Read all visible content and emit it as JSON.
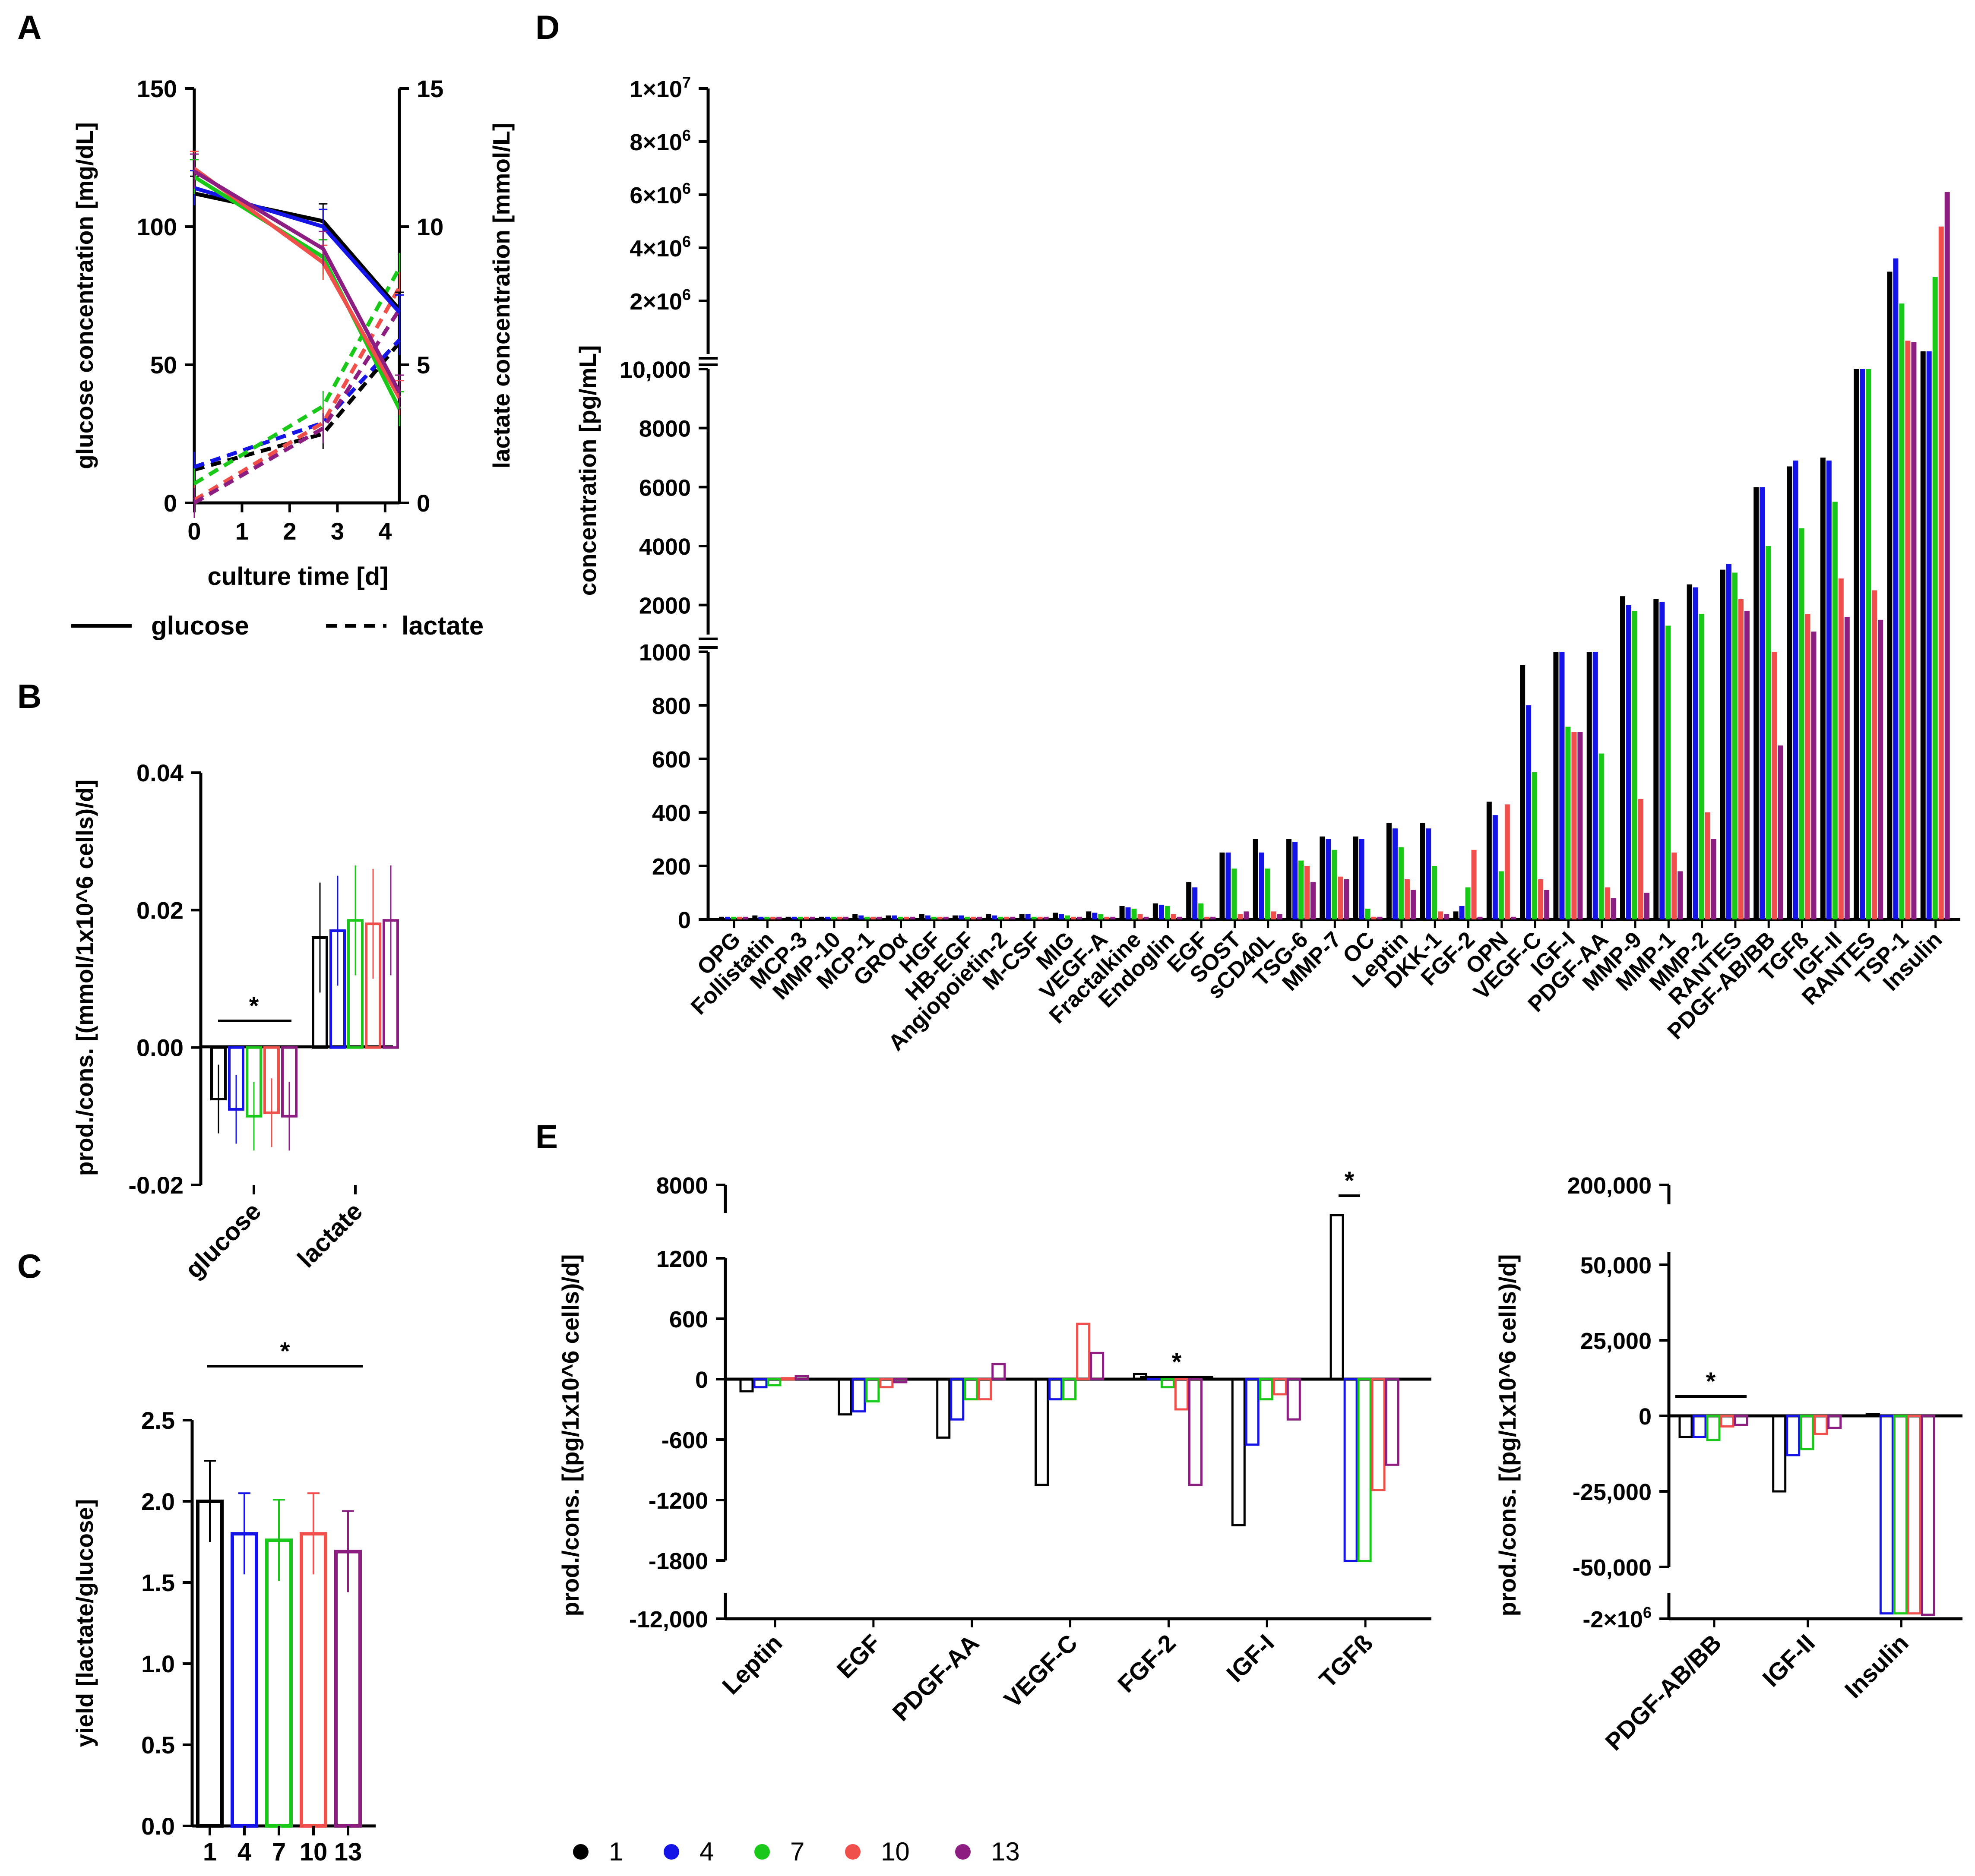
{
  "colors": {
    "g1": "#000000",
    "g4": "#1414e6",
    "g7": "#19c819",
    "g10": "#f0504b",
    "g13": "#8c1e82"
  },
  "legend": {
    "groups": [
      "1",
      "4",
      "7",
      "10",
      "13"
    ]
  },
  "panels": {
    "a": "A",
    "b": "B",
    "c": "C",
    "d": "D",
    "e": "E"
  },
  "chart_data": [
    {
      "id": "A",
      "type": "line",
      "xlabel": "culture time [d]",
      "ylabel": "glucose concentration [mg/dL]",
      "ylabel_right": "lactate concentration [mmol/L]",
      "x_ticks": [
        "0",
        "1",
        "2",
        "3",
        "4"
      ],
      "y_ticks": [
        "0",
        "50",
        "100",
        "150"
      ],
      "y_right_ticks": [
        "0",
        "5",
        "10",
        "15"
      ],
      "xlim": [
        0,
        4.3
      ],
      "ylim": [
        0,
        150
      ],
      "y_right_lim": [
        0,
        15
      ],
      "x": [
        0,
        2.7,
        4.3
      ],
      "legend": [
        {
          "label": "glucose",
          "style": "solid"
        },
        {
          "label": "lactate",
          "style": "dashed"
        }
      ],
      "glucose_series": [
        {
          "name": "1",
          "values": [
            112,
            102,
            70
          ]
        },
        {
          "name": "4",
          "values": [
            114,
            100,
            69
          ]
        },
        {
          "name": "7",
          "values": [
            118,
            89,
            34
          ]
        },
        {
          "name": "10",
          "values": [
            121,
            87,
            38
          ]
        },
        {
          "name": "13",
          "values": [
            120,
            92,
            40
          ]
        }
      ],
      "lactate_series": [
        {
          "name": "1",
          "values": [
            1.2,
            2.5,
            5.8
          ]
        },
        {
          "name": "4",
          "values": [
            1.3,
            2.9,
            5.9
          ]
        },
        {
          "name": "7",
          "values": [
            0.7,
            3.5,
            8.5
          ]
        },
        {
          "name": "10",
          "values": [
            0.1,
            2.9,
            7.8
          ]
        },
        {
          "name": "13",
          "values": [
            0.0,
            2.7,
            7.0
          ]
        }
      ]
    },
    {
      "id": "B",
      "type": "bar",
      "ylabel": "prod./cons. [(mmol/1x10^6 cells)/d]",
      "categories": [
        "glucose",
        "lactate"
      ],
      "y_ticks": [
        "-0.02",
        "0.00",
        "0.02",
        "0.04"
      ],
      "ylim": [
        -0.02,
        0.04
      ],
      "significance": "*",
      "series": [
        {
          "name": "1",
          "values": [
            -0.0075,
            0.016
          ]
        },
        {
          "name": "4",
          "values": [
            -0.009,
            0.017
          ]
        },
        {
          "name": "7",
          "values": [
            -0.01,
            0.0185
          ]
        },
        {
          "name": "10",
          "values": [
            -0.0095,
            0.018
          ]
        },
        {
          "name": "13",
          "values": [
            -0.01,
            0.0185
          ]
        }
      ]
    },
    {
      "id": "C",
      "type": "bar",
      "ylabel": "yield [lactate/glucose]",
      "categories": [
        "1",
        "4",
        "7",
        "10",
        "13"
      ],
      "values": [
        2.0,
        1.8,
        1.76,
        1.8,
        1.69
      ],
      "y_ticks": [
        "0.0",
        "0.5",
        "1.0",
        "1.5",
        "2.0",
        "2.5"
      ],
      "ylim": [
        0,
        2.5
      ],
      "significance": "*"
    },
    {
      "id": "D",
      "type": "bar",
      "ylabel": "concentration [pg/mL]",
      "y_ticks_low": [
        "0",
        "200",
        "400",
        "600",
        "800",
        "1000"
      ],
      "y_ticks_mid": [
        "2000",
        "4000",
        "6000",
        "8000",
        "10,000"
      ],
      "y_ticks_high_mantissa": [
        "2",
        "4",
        "6",
        "8",
        "1"
      ],
      "y_ticks_high_exponent": [
        "6",
        "6",
        "6",
        "6",
        "7"
      ],
      "y_ticks_high_base": "×10",
      "categories": [
        "OPG",
        "Follistatin",
        "MCP-3",
        "MMP-10",
        "MCP-1",
        "GROα",
        "HGF",
        "HB-EGF",
        "Angiopoietin-2",
        "M-CSF",
        "MIG",
        "VEGF-A",
        "Fractalkine",
        "Endoglin",
        "EGF",
        "SOST",
        "sCD40L",
        "TSG-6",
        "MMP-7",
        "OC",
        "Leptin",
        "DKK-1",
        "FGF-2",
        "OPN",
        "VEGF-C",
        "IGF-I",
        "PDGF-AA",
        "MMP-9",
        "MMP-1",
        "MMP-2",
        "RANTES",
        "PDGF-AB/BB",
        "TGFß",
        "IGF-II",
        "RANTES",
        "TSP-1",
        "Insulin"
      ],
      "series": [
        {
          "name": "1",
          "values": [
            10,
            15,
            10,
            10,
            20,
            15,
            20,
            15,
            20,
            20,
            25,
            30,
            50,
            60,
            140,
            250,
            300,
            300,
            310,
            310,
            360,
            360,
            30,
            440,
            950,
            1000,
            1000,
            2300,
            2200,
            2700,
            3200,
            6000,
            6700,
            7000,
            10000,
            3100000,
            100000
          ]
        },
        {
          "name": "4",
          "values": [
            10,
            10,
            10,
            10,
            15,
            15,
            15,
            15,
            15,
            20,
            20,
            25,
            45,
            55,
            120,
            250,
            250,
            290,
            300,
            300,
            340,
            340,
            50,
            390,
            800,
            1000,
            1000,
            2000,
            2100,
            2600,
            3400,
            6000,
            6900,
            6900,
            10000,
            3600000,
            100000
          ]
        },
        {
          "name": "7",
          "values": [
            10,
            10,
            10,
            10,
            10,
            10,
            10,
            10,
            10,
            10,
            15,
            20,
            40,
            50,
            60,
            190,
            190,
            220,
            260,
            40,
            270,
            200,
            120,
            180,
            550,
            720,
            620,
            1800,
            1300,
            1700,
            3100,
            4000,
            4600,
            5500,
            10000,
            1900000,
            2900000
          ]
        },
        {
          "name": "10",
          "values": [
            10,
            10,
            10,
            10,
            10,
            10,
            10,
            10,
            10,
            10,
            10,
            10,
            20,
            20,
            10,
            20,
            30,
            200,
            160,
            10,
            150,
            30,
            260,
            430,
            150,
            700,
            120,
            450,
            250,
            400,
            2200,
            1000,
            1700,
            2900,
            2500,
            500000,
            4800000
          ]
        },
        {
          "name": "13",
          "values": [
            10,
            10,
            10,
            10,
            10,
            10,
            10,
            10,
            10,
            10,
            10,
            10,
            10,
            10,
            10,
            30,
            20,
            140,
            150,
            10,
            110,
            20,
            10,
            10,
            110,
            700,
            80,
            100,
            180,
            300,
            1800,
            650,
            1100,
            1600,
            1500,
            450000,
            6100000
          ]
        }
      ]
    },
    {
      "id": "E-left",
      "type": "bar",
      "ylabel": "prod./cons. [(pg/1x10^6 cells)/d]",
      "categories": [
        "Leptin",
        "EGF",
        "PDGF-AA",
        "VEGF-C",
        "FGF-2",
        "IGF-I",
        "TGFß"
      ],
      "y_ticks": [
        "-12,000",
        "-1800",
        "-1200",
        "-600",
        "0",
        "600",
        "1200",
        "8000"
      ],
      "significance": [
        "*",
        "*"
      ],
      "series": [
        {
          "name": "1",
          "values": [
            -120,
            -350,
            -580,
            -1050,
            50,
            -1450,
            5200
          ]
        },
        {
          "name": "4",
          "values": [
            -80,
            -320,
            -400,
            -200,
            20,
            -650,
            -1900
          ]
        },
        {
          "name": "7",
          "values": [
            -60,
            -220,
            -200,
            -200,
            -80,
            -200,
            -1900
          ]
        },
        {
          "name": "10",
          "values": [
            10,
            -80,
            -200,
            550,
            -300,
            -150,
            -1100
          ]
        },
        {
          "name": "13",
          "values": [
            30,
            -30,
            150,
            260,
            -1050,
            -400,
            -850
          ]
        }
      ]
    },
    {
      "id": "E-right",
      "type": "bar",
      "ylabel": "prod./cons. [(pg/1x10^6 cells)/d]",
      "categories": [
        "PDGF-AB/BB",
        "IGF-II",
        "Insulin"
      ],
      "y_ticks": [
        "-50,000",
        "-25,000",
        "0",
        "25,000",
        "50,000",
        "200,000"
      ],
      "y_tick_bottom_mantissa": "-2",
      "y_tick_bottom_base": "×10",
      "y_tick_bottom_exponent": "6",
      "significance": "*",
      "series": [
        {
          "name": "1",
          "values": [
            -7000,
            -25000,
            500
          ]
        },
        {
          "name": "4",
          "values": [
            -7000,
            -13000,
            -1800000
          ]
        },
        {
          "name": "7",
          "values": [
            -8000,
            -11000,
            -1800000
          ]
        },
        {
          "name": "10",
          "values": [
            -3500,
            -6000,
            -1800000
          ]
        },
        {
          "name": "13",
          "values": [
            -3000,
            -4000,
            -1850000
          ]
        }
      ]
    }
  ]
}
